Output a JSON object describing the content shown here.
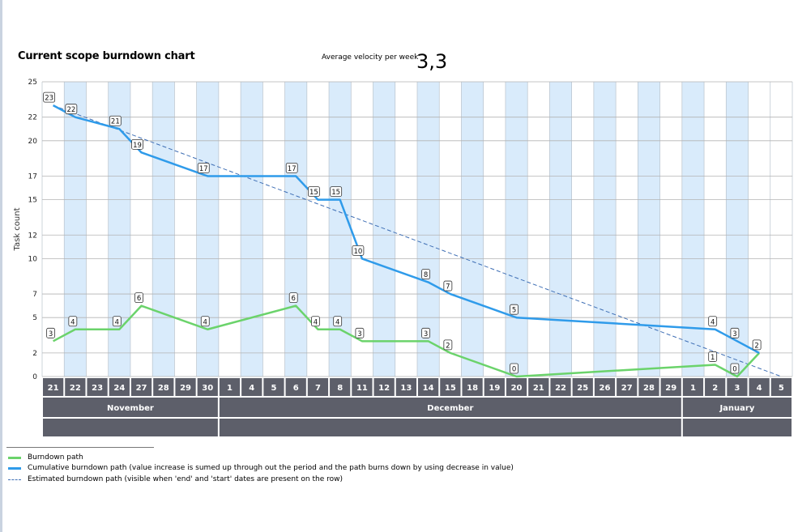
{
  "title": "Current scope burndown chart",
  "velocity": {
    "label": "Average velocity per week",
    "value": "3,3"
  },
  "colors": {
    "burndown": "#6bd36b",
    "cumulative": "#2f9bea",
    "estimated": "#3f6fb5",
    "weekend_band": "#d9ebfb",
    "axis_cell": "#5d5f6a"
  },
  "chart_data": {
    "type": "line",
    "ylabel": "Task count",
    "y_ticks": [
      "0",
      "2",
      "5",
      "7",
      "10",
      "12",
      "15",
      "17",
      "20",
      "22",
      "25"
    ],
    "ylim": [
      0,
      25
    ],
    "grid": true,
    "x": [
      "21",
      "22",
      "23",
      "24",
      "27",
      "28",
      "29",
      "30",
      "1",
      "4",
      "5",
      "6",
      "7",
      "8",
      "11",
      "12",
      "13",
      "14",
      "15",
      "18",
      "19",
      "20",
      "21",
      "22",
      "25",
      "26",
      "27",
      "28",
      "29",
      "1",
      "2",
      "3",
      "4",
      "5"
    ],
    "shaded_columns": [
      1,
      3,
      5,
      7,
      9,
      11,
      13,
      15,
      17,
      19,
      21,
      23,
      25,
      27,
      29,
      31
    ],
    "months": [
      {
        "label": "November",
        "start": 0,
        "end": 7
      },
      {
        "label": "December",
        "start": 8,
        "end": 28
      },
      {
        "label": "January",
        "start": 29,
        "end": 33
      }
    ],
    "series": [
      {
        "name": "Burndown path",
        "points": [
          {
            "x": 0,
            "y": 3,
            "label": "3"
          },
          {
            "x": 1,
            "y": 4,
            "label": "4"
          },
          {
            "x": 3,
            "y": 4,
            "label": "4"
          },
          {
            "x": 4,
            "y": 6,
            "label": "6"
          },
          {
            "x": 7,
            "y": 4,
            "label": "4"
          },
          {
            "x": 11,
            "y": 6,
            "label": "6"
          },
          {
            "x": 12,
            "y": 4,
            "label": "4"
          },
          {
            "x": 13,
            "y": 4,
            "label": "4"
          },
          {
            "x": 14,
            "y": 3,
            "label": "3"
          },
          {
            "x": 17,
            "y": 3,
            "label": "3"
          },
          {
            "x": 18,
            "y": 2,
            "label": "2"
          },
          {
            "x": 21,
            "y": 0,
            "label": "0"
          },
          {
            "x": 30,
            "y": 1,
            "label": "1"
          },
          {
            "x": 31,
            "y": 0,
            "label": "0"
          },
          {
            "x": 32,
            "y": 2
          }
        ]
      },
      {
        "name": "Cumulative burndown path (value increase is sumed up through out the period and the path burns down by using decrease in value)",
        "points": [
          {
            "x": 0,
            "y": 23,
            "label": "23"
          },
          {
            "x": 1,
            "y": 22,
            "label": "22"
          },
          {
            "x": 3,
            "y": 21,
            "label": "21"
          },
          {
            "x": 4,
            "y": 19,
            "label": "19"
          },
          {
            "x": 7,
            "y": 17,
            "label": "17"
          },
          {
            "x": 11,
            "y": 17,
            "label": "17"
          },
          {
            "x": 12,
            "y": 15,
            "label": "15"
          },
          {
            "x": 13,
            "y": 15,
            "label": "15"
          },
          {
            "x": 14,
            "y": 10,
            "label": "10"
          },
          {
            "x": 17,
            "y": 8,
            "label": "8"
          },
          {
            "x": 18,
            "y": 7,
            "label": "7"
          },
          {
            "x": 21,
            "y": 5,
            "label": "5"
          },
          {
            "x": 30,
            "y": 4,
            "label": "4"
          },
          {
            "x": 31,
            "y": 3,
            "label": "3"
          },
          {
            "x": 32,
            "y": 2,
            "label": "2"
          }
        ]
      },
      {
        "name": "Estimated burndown path (visible when 'end' and 'start' dates are present on the row)",
        "points": [
          {
            "x": 0,
            "y": 23
          },
          {
            "x": 33,
            "y": 0
          }
        ]
      }
    ]
  },
  "legend": [
    {
      "label": "Burndown path"
    },
    {
      "label": "Cumulative burndown path (value increase is sumed up through out the period and the path burns down by using decrease in value)"
    },
    {
      "label": "Estimated burndown path (visible when 'end' and 'start' dates are present on the row)"
    }
  ]
}
